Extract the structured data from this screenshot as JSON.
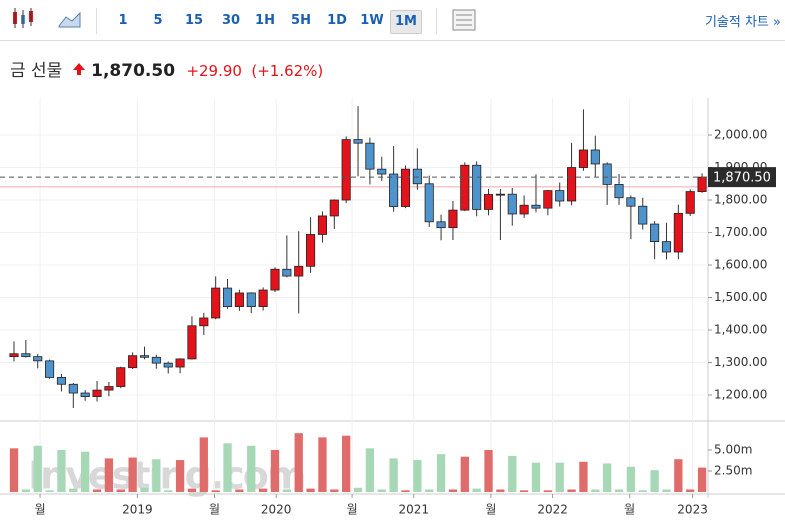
{
  "toolbar": {
    "intervals": [
      "1",
      "5",
      "15",
      "30",
      "1H",
      "5H",
      "1D",
      "1W",
      "1M"
    ],
    "selected": "1M",
    "technical": "기술적 차트 »"
  },
  "header": {
    "name": "금 선물",
    "price": "1,870.50",
    "change": "+29.90",
    "change_pct": "(+1.62%)"
  },
  "chart_data": {
    "type": "candlestick",
    "open": [
      1318,
      1327,
      1318,
      1305,
      1254,
      1233,
      1206,
      1195,
      1215,
      1226,
      1284,
      1321,
      1316,
      1298,
      1286,
      1311,
      1413,
      1437,
      1529,
      1472,
      1514,
      1472,
      1523,
      1587,
      1566,
      1596,
      1694,
      1751,
      1800,
      1986,
      1975,
      1895,
      1880,
      1780,
      1895,
      1850,
      1733,
      1715,
      1769,
      1907,
      1771,
      1817,
      1818,
      1757,
      1784,
      1775,
      1829,
      1797,
      1900,
      1954,
      1911,
      1848,
      1807,
      1781,
      1726,
      1672,
      1640,
      1759,
      1826
    ],
    "high": [
      1365,
      1369,
      1326,
      1309,
      1265,
      1237,
      1215,
      1243,
      1240,
      1287,
      1331,
      1349,
      1324,
      1303,
      1313,
      1442,
      1453,
      1565,
      1557,
      1524,
      1516,
      1531,
      1593,
      1691,
      1704,
      1747,
      1765,
      1802,
      1996,
      2089,
      1992,
      1933,
      1966,
      1906,
      1959,
      1875,
      1755,
      1797,
      1916,
      1919,
      1834,
      1834,
      1837,
      1814,
      1879,
      1831,
      1854,
      1976,
      2079,
      1998,
      1916,
      1880,
      1814,
      1807,
      1735,
      1730,
      1786,
      1833,
      1882
    ],
    "low": [
      1303,
      1315,
      1282,
      1250,
      1211,
      1160,
      1182,
      1180,
      1196,
      1221,
      1280,
      1310,
      1281,
      1266,
      1267,
      1309,
      1385,
      1433,
      1465,
      1459,
      1452,
      1460,
      1517,
      1562,
      1451,
      1576,
      1669,
      1711,
      1791,
      1873,
      1848,
      1859,
      1764,
      1775,
      1832,
      1717,
      1676,
      1677,
      1766,
      1750,
      1753,
      1677,
      1721,
      1745,
      1762,
      1753,
      1780,
      1784,
      1890,
      1872,
      1785,
      1785,
      1680,
      1709,
      1618,
      1617,
      1618,
      1751,
      1822
    ],
    "close": [
      1327,
      1318,
      1305,
      1254,
      1233,
      1206,
      1195,
      1215,
      1226,
      1284,
      1321,
      1316,
      1298,
      1286,
      1311,
      1413,
      1437,
      1529,
      1472,
      1514,
      1472,
      1523,
      1587,
      1566,
      1596,
      1694,
      1751,
      1800,
      1986,
      1975,
      1895,
      1880,
      1780,
      1895,
      1850,
      1733,
      1715,
      1769,
      1907,
      1771,
      1817,
      1818,
      1757,
      1784,
      1775,
      1829,
      1797,
      1900,
      1954,
      1911,
      1848,
      1807,
      1781,
      1726,
      1672,
      1640,
      1759,
      1826,
      1870.5
    ],
    "volume": [
      5.2,
      0.3,
      5.5,
      0.2,
      5.0,
      0.4,
      4.8,
      0.3,
      4.0,
      0.3,
      4.1,
      0.5,
      3.9,
      0.2,
      3.8,
      0.4,
      6.5,
      0.2,
      5.8,
      0.3,
      5.5,
      0.4,
      5.0,
      0.3,
      7.0,
      0.4,
      6.5,
      0.3,
      6.7,
      0.5,
      5.2,
      0.3,
      4.0,
      0.2,
      3.8,
      0.3,
      4.5,
      0.3,
      4.2,
      0.4,
      5.0,
      0.3,
      4.3,
      0.2,
      3.5,
      0.2,
      3.5,
      0.3,
      3.6,
      0.3,
      3.4,
      0.3,
      3.0,
      0.2,
      2.6,
      0.3,
      3.9,
      0.3,
      2.9
    ],
    "up_color": "#e4131b",
    "down_color": "#4f93cc",
    "vol_up_color": "#e06b6b",
    "vol_down_color": "#a6d8b5",
    "xlim": [
      -1.18,
      58.5
    ],
    "xticks": [
      {
        "value": 2.2,
        "label": "월"
      },
      {
        "value": 10.4,
        "label": "2019"
      },
      {
        "value": 16.9,
        "label": "월"
      },
      {
        "value": 22.1,
        "label": "2020"
      },
      {
        "value": 28.5,
        "label": "월"
      },
      {
        "value": 33.7,
        "label": "2021"
      },
      {
        "value": 40.2,
        "label": "월"
      },
      {
        "value": 45.4,
        "label": "2022"
      },
      {
        "value": 51.9,
        "label": "월"
      },
      {
        "value": 57.2,
        "label": "2023"
      }
    ],
    "ylim": [
      1123,
      2114
    ],
    "yticks": [
      {
        "value": 1200,
        "label": "1,200.00"
      },
      {
        "value": 1300,
        "label": "1,300.00"
      },
      {
        "value": 1400,
        "label": "1,400.00"
      },
      {
        "value": 1500,
        "label": "1,500.00"
      },
      {
        "value": 1600,
        "label": "1,600.00"
      },
      {
        "value": 1700,
        "label": "1,700.00"
      },
      {
        "value": 1800,
        "label": "1,800.00"
      },
      {
        "value": 1900,
        "label": "1,900.00"
      },
      {
        "value": 2000,
        "label": "2,000.00"
      }
    ],
    "vlim": [
      0,
      8.33
    ],
    "vticks": [
      {
        "value": 2.5,
        "label": "2.50m"
      },
      {
        "value": 5,
        "label": "5.00m"
      }
    ],
    "last_price": {
      "value": 1870.5,
      "label": "1,870.50"
    },
    "reference_line": 1840.6,
    "watermark": "Investing.com"
  }
}
